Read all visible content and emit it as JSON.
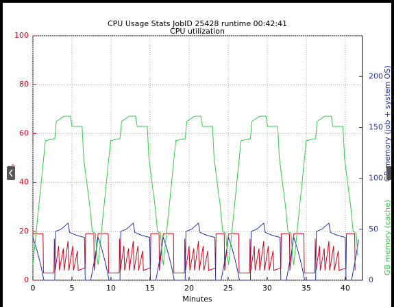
{
  "chart_data": {
    "type": "line",
    "title": "CPU Usage Stats JobID 25428  runtime 00:42:41",
    "subtitle": "CPU utilization",
    "xlabel": "Minutes",
    "ylabel": "%",
    "y2label": "GB memory (job + system OS)",
    "y2label_cache": "GB memory (cache)",
    "xlim": [
      0,
      42.2
    ],
    "xticks": [
      0,
      5,
      10,
      15,
      20,
      25,
      30,
      35,
      40
    ],
    "ylim": [
      0,
      100
    ],
    "yticks": [
      0,
      20,
      40,
      60,
      80,
      100
    ],
    "y2lim": [
      0,
      240
    ],
    "y2ticks": [
      0,
      50,
      100,
      150,
      200
    ],
    "grid": true,
    "series": [
      {
        "color": "#d0021b",
        "axis": "y",
        "x": [
          0,
          1.3,
          1.35,
          2.7,
          2.75,
          2.85,
          3.3,
          3.4,
          3.9,
          4.0,
          4.5,
          4.6,
          5.1,
          5.2,
          5.7,
          5.8,
          6.7,
          6.75,
          7.8,
          7.85,
          8.35,
          9.65,
          9.7,
          11.05,
          11.1,
          11.2,
          11.65,
          11.75,
          12.25,
          12.35,
          12.85,
          12.95,
          13.45,
          13.55,
          14.05,
          14.15,
          15.05,
          15.1,
          16.15,
          16.2,
          16.7,
          18.0,
          18.05,
          19.4,
          19.45,
          19.55,
          20.0,
          20.1,
          20.6,
          20.7,
          21.2,
          21.3,
          21.8,
          21.9,
          22.4,
          22.5,
          23.4,
          23.45,
          24.5,
          24.55,
          25.05,
          26.35,
          26.4,
          27.75,
          27.8,
          27.9,
          28.35,
          28.45,
          28.95,
          29.05,
          29.55,
          29.65,
          30.15,
          30.25,
          30.75,
          30.85,
          31.75,
          31.8,
          32.85,
          32.9,
          33.4,
          34.7,
          34.75,
          36.1,
          36.15,
          36.25,
          36.7,
          36.8,
          37.3,
          37.4,
          37.9,
          38.0,
          38.5,
          38.6,
          39.1,
          39.2,
          40.1,
          40.15,
          41.2,
          41.25
        ],
        "values": [
          19,
          19,
          3,
          3,
          17,
          4,
          14,
          4,
          13,
          4,
          16,
          4,
          14,
          4,
          12,
          4,
          5,
          19,
          19,
          4,
          19,
          19,
          3,
          3,
          17,
          4,
          14,
          4,
          13,
          4,
          16,
          4,
          14,
          4,
          12,
          4,
          5,
          19,
          19,
          4,
          19,
          19,
          3,
          3,
          17,
          4,
          14,
          4,
          13,
          4,
          16,
          4,
          14,
          4,
          12,
          4,
          5,
          19,
          19,
          4,
          19,
          19,
          3,
          3,
          17,
          4,
          14,
          4,
          13,
          4,
          16,
          4,
          14,
          4,
          12,
          4,
          5,
          19,
          19,
          4,
          19,
          19,
          3,
          3,
          17,
          4,
          14,
          4,
          13,
          4,
          16,
          4,
          14,
          4,
          12,
          4,
          5,
          19,
          19,
          4
        ]
      },
      {
        "color": "#1f2fb0",
        "axis": "y2",
        "x": [
          0,
          0.5,
          1.0,
          1.4,
          2.8,
          2.9,
          3.6,
          4.5,
          4.7,
          5.6,
          6.6,
          6.7,
          7.4,
          8.0,
          8.3,
          8.35,
          8.85,
          9.35,
          9.75,
          11.15,
          11.25,
          11.95,
          12.85,
          13.05,
          13.95,
          14.95,
          15.05,
          15.75,
          16.35,
          16.65,
          16.7,
          17.2,
          17.7,
          18.1,
          19.5,
          19.6,
          20.3,
          21.2,
          21.4,
          22.3,
          23.3,
          23.4,
          24.1,
          24.7,
          25.0,
          25.05,
          25.55,
          26.05,
          26.45,
          27.85,
          27.95,
          28.65,
          29.55,
          29.75,
          30.65,
          31.65,
          31.75,
          32.45,
          33.05,
          33.35,
          33.4,
          33.9,
          34.4,
          34.8,
          36.2,
          36.3,
          37.0,
          37.9,
          38.1,
          39.0,
          40.0,
          40.1,
          40.8,
          41.4,
          41.7
        ],
        "values": [
          42,
          30,
          15,
          0,
          0,
          48,
          50,
          56,
          47,
          44,
          42,
          0,
          0,
          25,
          40,
          42,
          30,
          15,
          0,
          0,
          48,
          50,
          56,
          47,
          44,
          42,
          0,
          0,
          25,
          40,
          42,
          30,
          15,
          0,
          0,
          48,
          50,
          56,
          47,
          44,
          42,
          0,
          0,
          25,
          40,
          42,
          30,
          15,
          0,
          0,
          48,
          50,
          56,
          47,
          44,
          42,
          0,
          0,
          25,
          40,
          42,
          30,
          15,
          0,
          0,
          48,
          50,
          56,
          47,
          44,
          42,
          0,
          0,
          25,
          40
        ]
      },
      {
        "color": "#2ecc40",
        "axis": "y2",
        "x": [
          0,
          1.6,
          2.8,
          3.0,
          4.0,
          4.8,
          5.0,
          6.3,
          6.5,
          6.9,
          7.3,
          7.6,
          8.0,
          8.2,
          8.35,
          9.95,
          11.15,
          11.35,
          12.35,
          13.15,
          13.35,
          14.65,
          14.85,
          15.25,
          15.65,
          15.95,
          16.35,
          16.55,
          16.7,
          18.3,
          19.5,
          19.7,
          20.7,
          21.5,
          21.7,
          23.0,
          23.2,
          23.6,
          24.0,
          24.3,
          24.7,
          24.9,
          25.05,
          26.65,
          27.85,
          28.05,
          29.05,
          29.85,
          30.05,
          31.35,
          31.55,
          31.95,
          32.35,
          32.65,
          33.05,
          33.25,
          33.4,
          35.0,
          36.2,
          36.4,
          37.4,
          38.2,
          38.4,
          39.7,
          39.9,
          40.3,
          40.7,
          41.0,
          41.4,
          41.6
        ],
        "values": [
          15,
          137,
          139,
          156,
          161,
          161,
          151,
          151,
          120,
          96,
          72,
          48,
          46,
          24,
          15,
          137,
          139,
          156,
          161,
          161,
          151,
          151,
          120,
          96,
          72,
          48,
          46,
          24,
          15,
          137,
          139,
          156,
          161,
          161,
          151,
          151,
          120,
          96,
          72,
          48,
          46,
          24,
          15,
          137,
          139,
          156,
          161,
          161,
          151,
          151,
          120,
          96,
          72,
          48,
          46,
          24,
          15,
          137,
          139,
          156,
          161,
          161,
          151,
          151,
          120,
          96,
          72,
          48,
          46,
          24
        ]
      }
    ]
  }
}
